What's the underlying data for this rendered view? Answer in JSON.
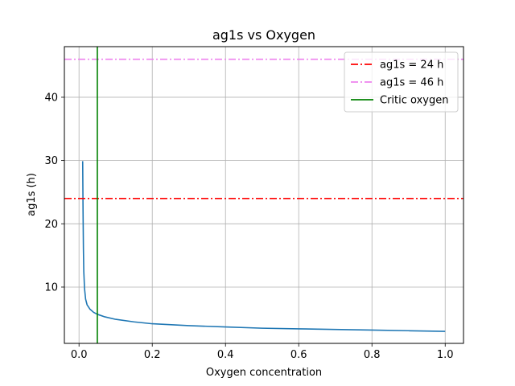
{
  "chart_data": {
    "type": "line",
    "title": "ag1s vs Oxygen",
    "xlabel": "Oxygen concentration",
    "ylabel": "ag1s (h)",
    "xlim": [
      -0.04,
      1.05
    ],
    "ylim": [
      1.1,
      48.0
    ],
    "xticks": [
      0.0,
      0.2,
      0.4,
      0.6,
      0.8,
      1.0
    ],
    "xtick_labels": [
      "0.0",
      "0.2",
      "0.4",
      "0.6",
      "0.8",
      "1.0"
    ],
    "yticks": [
      10,
      20,
      30,
      40
    ],
    "ytick_labels": [
      "10",
      "20",
      "30",
      "40"
    ],
    "grid": true,
    "legend_position": "top-right",
    "series": [
      {
        "color": "#1f77b4",
        "style": "solid",
        "x": [
          0.01,
          0.011,
          0.012,
          0.013,
          0.015,
          0.018,
          0.022,
          0.03,
          0.04,
          0.05,
          0.07,
          0.1,
          0.15,
          0.2,
          0.3,
          0.4,
          0.5,
          0.6,
          0.7,
          0.8,
          0.9,
          1.0
        ],
        "y": [
          29.9,
          22.0,
          16.0,
          12.5,
          9.8,
          8.1,
          7.2,
          6.5,
          6.0,
          5.7,
          5.3,
          4.9,
          4.5,
          4.2,
          3.9,
          3.7,
          3.5,
          3.4,
          3.3,
          3.2,
          3.1,
          3.0
        ]
      },
      {
        "name": "ag1s = 24 h",
        "color": "#ff0000",
        "style": "dashdot",
        "kind": "hline",
        "y": 24
      },
      {
        "name": "ag1s = 46 h",
        "color": "#ee82ee",
        "style": "dashdot",
        "kind": "hline",
        "y": 46
      },
      {
        "name": "Critic oxygen",
        "color": "#008000",
        "style": "solid",
        "kind": "vline",
        "x": 0.05
      }
    ]
  }
}
